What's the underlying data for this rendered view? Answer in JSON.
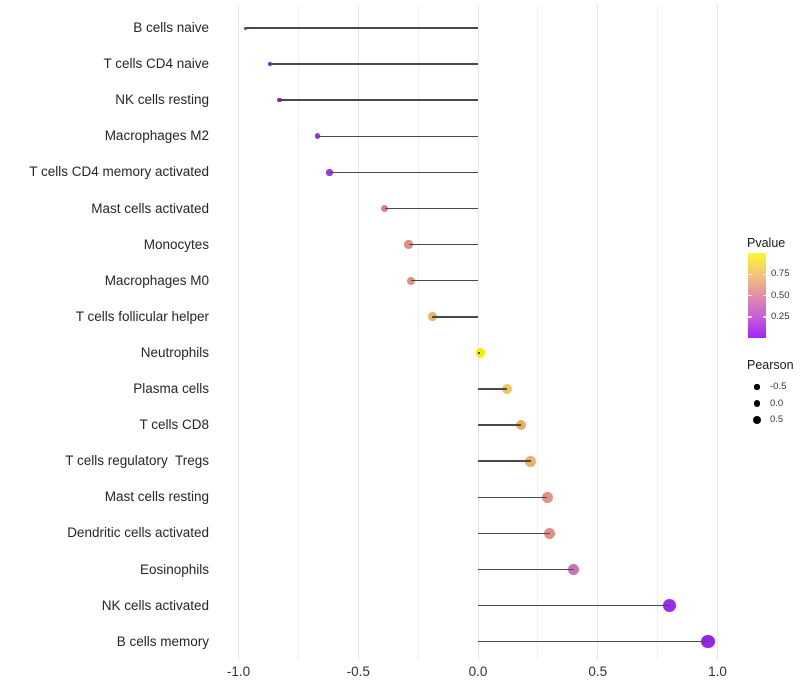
{
  "chart_data": {
    "type": "scatter",
    "subtype": "lollipop",
    "title": "",
    "xlabel": "",
    "ylabel": "",
    "points": [
      {
        "label": "B cells naive",
        "pearson": -0.97,
        "color": "#8420E0"
      },
      {
        "label": "T cells CD4 naive",
        "pearson": -0.87,
        "color": "#8A22E6"
      },
      {
        "label": "NK cells resting",
        "pearson": -0.83,
        "color": "#8A24E4"
      },
      {
        "label": "Macrophages M2",
        "pearson": -0.67,
        "color": "#9A33E0"
      },
      {
        "label": "T cells CD4 memory activated",
        "pearson": -0.62,
        "color": "#9F3ADC"
      },
      {
        "label": "Mast cells activated",
        "pearson": -0.39,
        "color": "#D877A8"
      },
      {
        "label": "Monocytes",
        "pearson": -0.29,
        "color": "#E0907E"
      },
      {
        "label": "Macrophages M0",
        "pearson": -0.28,
        "color": "#E0907E"
      },
      {
        "label": "T cells follicular helper",
        "pearson": -0.19,
        "color": "#EEB366"
      },
      {
        "label": "Neutrophils",
        "pearson": 0.01,
        "color": "#F6F000"
      },
      {
        "label": "Plasma cells",
        "pearson": 0.12,
        "color": "#F2C55E"
      },
      {
        "label": "T cells CD8",
        "pearson": 0.18,
        "color": "#EDAE5C"
      },
      {
        "label": "T cells regulatory  Tregs",
        "pearson": 0.22,
        "color": "#EFB168"
      },
      {
        "label": "Mast cells resting",
        "pearson": 0.29,
        "color": "#E49086"
      },
      {
        "label": "Dendritic cells activated",
        "pearson": 0.3,
        "color": "#E28E88"
      },
      {
        "label": "Eosinophils",
        "pearson": 0.4,
        "color": "#CA72B5"
      },
      {
        "label": "NK cells activated",
        "pearson": 0.8,
        "color": "#9B2BF0"
      },
      {
        "label": "B cells memory",
        "pearson": 0.96,
        "color": "#9623EA"
      }
    ],
    "xticks": {
      "labels": [
        "-1.0",
        "-0.5",
        "0.0",
        "0.5",
        "1.0"
      ],
      "values": [
        -1,
        -0.5,
        0,
        0.5,
        1
      ]
    },
    "x_minor_step": 0.25,
    "xlim": [
      -1.07,
      1.07
    ],
    "grid": "on",
    "stem_color": "#4a4a4a",
    "legend_position": "right",
    "legends": {
      "pvalue": {
        "title": "Pvalue",
        "tick_labels": [
          "0.75",
          "0.50",
          "0.25"
        ],
        "tick_values": [
          0.75,
          0.5,
          0.25
        ],
        "range": [
          0,
          1
        ],
        "gradient_bottom_to_top": [
          "#A226F7",
          "#C75FD8",
          "#E08FA8",
          "#F4C478",
          "#FBF72F"
        ]
      },
      "pearson": {
        "title": "Pearson",
        "dot_color": "#000000",
        "items": [
          {
            "label": "-0.5",
            "value": -0.5
          },
          {
            "label": "0.0",
            "value": 0.0
          },
          {
            "label": "0.5",
            "value": 0.5
          }
        ]
      }
    }
  }
}
